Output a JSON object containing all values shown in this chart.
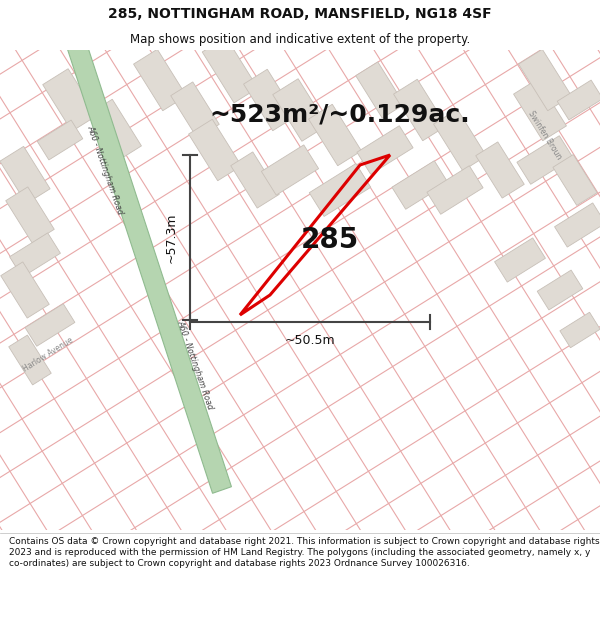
{
  "title_line1": "285, NOTTINGHAM ROAD, MANSFIELD, NG18 4SF",
  "title_line2": "Map shows position and indicative extent of the property.",
  "area_text": "~523m²/~0.129ac.",
  "label_285": "285",
  "dim_vertical": "~57.3m",
  "dim_horizontal": "~50.5m",
  "footer_text": "Contains OS data © Crown copyright and database right 2021. This information is subject to Crown copyright and database rights 2023 and is reproduced with the permission of HM Land Registry. The polygons (including the associated geometry, namely x, y co-ordinates) are subject to Crown copyright and database rights 2023 Ordnance Survey 100026316.",
  "bg_map_color": "#f5f3f0",
  "road_green_color": "#b5d5b0",
  "road_green_edge": "#90bb90",
  "building_fill": "#e0dbd4",
  "building_edge": "#c8c0b8",
  "road_line_color": "#e8a8a8",
  "property_color": "#dd0000",
  "dim_line_color": "#444444",
  "title_bg": "#ffffff",
  "footer_bg": "#ffffff",
  "title_fontsize": 10,
  "subtitle_fontsize": 8.5,
  "area_fontsize": 18,
  "label_fontsize": 20,
  "dim_fontsize": 9,
  "footer_fontsize": 6.5
}
